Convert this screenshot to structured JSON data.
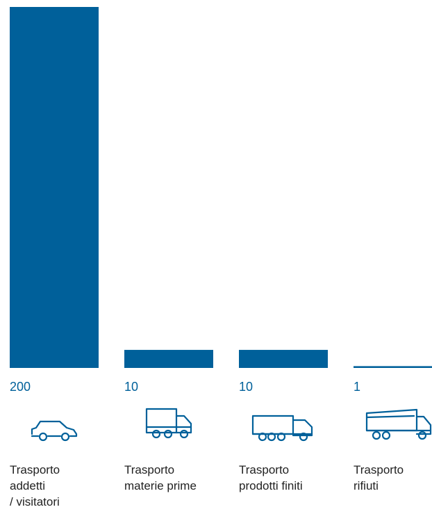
{
  "chart_data": {
    "type": "bar",
    "categories": [
      "Trasporto addetti / visitatori",
      "Trasporto materie prime",
      "Trasporto prodotti finiti",
      "Trasporto rifiuti"
    ],
    "values": [
      200,
      10,
      10,
      1
    ],
    "value_labels": [
      "200",
      "10",
      "10",
      "1"
    ],
    "category_labels": [
      "Trasporto\naddetti\n/ visitatori",
      "Trasporto\nmaterie prime",
      "Trasporto\nprodotti finiti",
      "Trasporto\nrifiuti"
    ],
    "icons": [
      "car-icon",
      "delivery-truck-icon",
      "trailer-truck-icon",
      "dump-truck-icon"
    ],
    "ylim": [
      0,
      200
    ],
    "grid": false,
    "color": "#00609a"
  }
}
